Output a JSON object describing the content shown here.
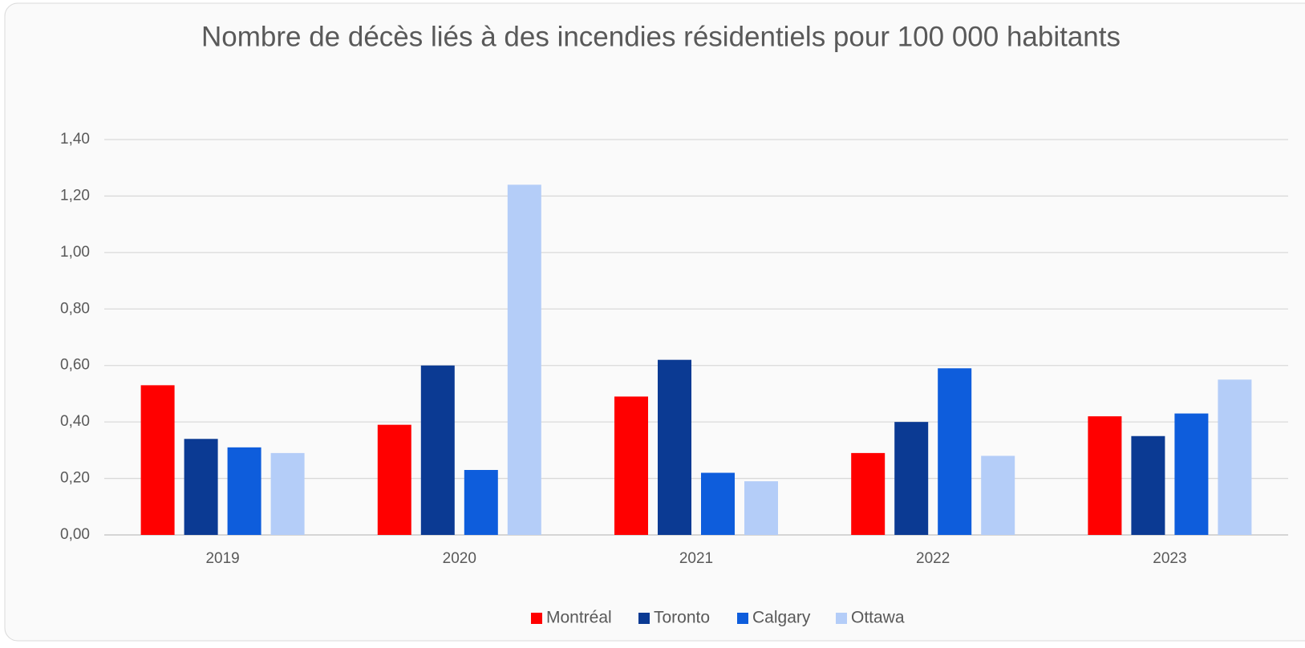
{
  "chart_data": {
    "type": "bar",
    "title": "Nombre de décès liés à des incendies résidentiels pour 100 000 habitants",
    "categories": [
      "2019",
      "2020",
      "2021",
      "2022",
      "2023"
    ],
    "series": [
      {
        "name": "Montréal",
        "color": "#ff0000",
        "values": [
          0.53,
          0.39,
          0.49,
          0.29,
          0.42
        ]
      },
      {
        "name": "Toronto",
        "color": "#0b3a93",
        "values": [
          0.34,
          0.6,
          0.62,
          0.4,
          0.35
        ]
      },
      {
        "name": "Calgary",
        "color": "#0e5ddc",
        "values": [
          0.31,
          0.23,
          0.22,
          0.59,
          0.43
        ]
      },
      {
        "name": "Ottawa",
        "color": "#b4cdf8",
        "values": [
          0.29,
          1.24,
          0.19,
          0.28,
          0.55
        ]
      }
    ],
    "ylim": [
      0,
      1.4
    ],
    "yticks": [
      {
        "value": 0,
        "label": "0,00"
      },
      {
        "value": 0.2,
        "label": "0,20"
      },
      {
        "value": 0.4,
        "label": "0,40"
      },
      {
        "value": 0.6,
        "label": "0,60"
      },
      {
        "value": 0.8,
        "label": "0,80"
      },
      {
        "value": 1.0,
        "label": "1,00"
      },
      {
        "value": 1.2,
        "label": "1,20"
      },
      {
        "value": 1.4,
        "label": "1,40"
      }
    ],
    "grid": true,
    "legend": "bottom"
  }
}
